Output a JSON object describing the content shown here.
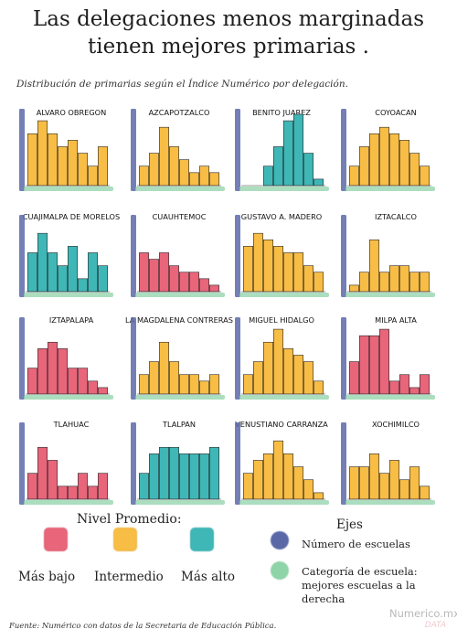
{
  "title_line1": "Las delegaciones menos marginadas",
  "title_line2": "tienen mejores primarias .",
  "subtitle": "Distribución de primarias según el Índice Numérico por delegación.",
  "colors": {
    "low": "#e8657a",
    "mid": "#f8bd45",
    "high": "#3fb7b7",
    "y_axis": "#5a68a8",
    "x_axis": "#8fd3a8"
  },
  "chart_data": [
    {
      "type": "bar",
      "title": "ALVARO OBREGON",
      "level": "mid",
      "values": [
        8,
        10,
        8,
        6,
        7,
        5,
        3,
        6
      ]
    },
    {
      "type": "bar",
      "title": "AZCAPOTZALCO",
      "level": "mid",
      "values": [
        3,
        5,
        9,
        6,
        4,
        2,
        3,
        2
      ]
    },
    {
      "type": "bar",
      "title": "BENITO JUAREZ",
      "level": "high",
      "values": [
        0,
        0,
        3,
        6,
        10,
        11,
        5,
        1
      ]
    },
    {
      "type": "bar",
      "title": "COYOACAN",
      "level": "mid",
      "values": [
        3,
        6,
        8,
        9,
        8,
        7,
        5,
        3
      ]
    },
    {
      "type": "bar",
      "title": "CUAJIMALPA DE MORELOS",
      "level": "high",
      "values": [
        6,
        9,
        6,
        4,
        7,
        2,
        6,
        4
      ]
    },
    {
      "type": "bar",
      "title": "CUAUHTEMOC",
      "level": "low",
      "values": [
        6,
        5,
        6,
        4,
        3,
        3,
        2,
        1
      ]
    },
    {
      "type": "bar",
      "title": "GUSTAVO A. MADERO",
      "level": "mid",
      "values": [
        7,
        9,
        8,
        7,
        6,
        6,
        4,
        3
      ]
    },
    {
      "type": "bar",
      "title": "IZTACALCO",
      "level": "mid",
      "values": [
        1,
        3,
        8,
        3,
        4,
        4,
        3,
        3
      ]
    },
    {
      "type": "bar",
      "title": "IZTAPALAPA",
      "level": "low",
      "values": [
        4,
        7,
        8,
        7,
        4,
        4,
        2,
        1
      ]
    },
    {
      "type": "bar",
      "title": "LA MAGDALENA CONTRERAS",
      "level": "mid",
      "values": [
        3,
        5,
        8,
        5,
        3,
        3,
        2,
        3
      ]
    },
    {
      "type": "bar",
      "title": "MIGUEL HIDALGO",
      "level": "mid",
      "values": [
        3,
        5,
        8,
        10,
        7,
        6,
        5,
        2
      ]
    },
    {
      "type": "bar",
      "title": "MILPA ALTA",
      "level": "low",
      "values": [
        5,
        9,
        9,
        10,
        2,
        3,
        1,
        3
      ]
    },
    {
      "type": "bar",
      "title": "TLAHUAC",
      "level": "low",
      "values": [
        4,
        8,
        6,
        2,
        2,
        4,
        2,
        4
      ]
    },
    {
      "type": "bar",
      "title": "TLALPAN",
      "level": "high",
      "values": [
        4,
        7,
        8,
        8,
        7,
        7,
        7,
        8
      ]
    },
    {
      "type": "bar",
      "title": "VENUSTIANO CARRANZA",
      "level": "mid",
      "values": [
        4,
        6,
        7,
        9,
        7,
        5,
        3,
        1
      ]
    },
    {
      "type": "bar",
      "title": "XOCHIMILCO",
      "level": "mid",
      "values": [
        5,
        5,
        7,
        4,
        6,
        3,
        5,
        2
      ]
    }
  ],
  "legend": {
    "title": "Nivel Promedio:",
    "low_label": "Más bajo",
    "mid_label": "Intermedio",
    "high_label": "Más alto"
  },
  "axes": {
    "title": "Ejes",
    "y_desc": "Número de escuelas",
    "x_desc_line1": "Categoría de escuela:",
    "x_desc_line2": "mejores escuelas a la derecha"
  },
  "source": "Fuente: Numérico con datos de la Secretaria de Educación Pública.",
  "brand": "Numerico.mx",
  "brand_sub": "DATA"
}
